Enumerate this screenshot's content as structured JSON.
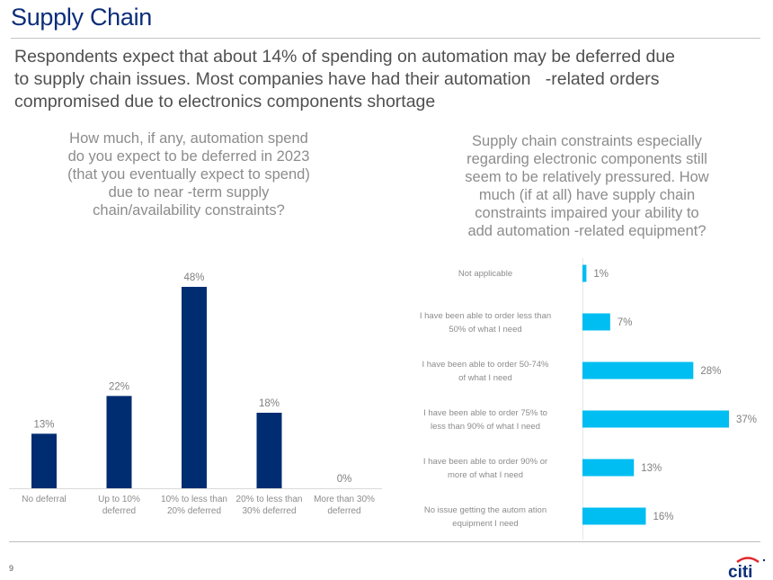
{
  "header": {
    "title": "Supply Chain",
    "subtitle_lines": [
      "Respondents expect that about 14% of spending on automation may be deferred due",
      "to supply chain issues. Most companies have had their automation   -related orders",
      "compromised due to electronics components shortage"
    ]
  },
  "colors": {
    "title": "#0b2e7a",
    "left_bars": "#002d72",
    "right_bars": "#00bdf2",
    "label_text": "#8c8c8c",
    "logo_arc": "#e0262c",
    "logo_text": "#0b2e7a"
  },
  "chart_data": [
    {
      "type": "bar",
      "orientation": "vertical",
      "title_lines": [
        "How much, if any, automation spend",
        "do you expect to be deferred in 2023",
        "(that you eventually expect to spend)",
        "due to near -term supply",
        "chain/availability constraints?"
      ],
      "categories": [
        [
          "No deferral"
        ],
        [
          "Up to 10%",
          "deferred"
        ],
        [
          "10% to less than",
          "20% deferred"
        ],
        [
          "20% to less than",
          "30% deferred"
        ],
        [
          "More than 30%",
          "deferred"
        ]
      ],
      "values": [
        13,
        22,
        48,
        18,
        0
      ],
      "data_labels": [
        "13%",
        "22%",
        "48%",
        "18%",
        "0%"
      ],
      "unit": "%",
      "ylim": [
        0,
        50
      ],
      "grid": false,
      "legend": "none"
    },
    {
      "type": "bar",
      "orientation": "horizontal",
      "title_lines": [
        "Supply chain constraints especially",
        "regarding electronic components still",
        "seem to be relatively pressured. How",
        "much (if at all) have supply chain",
        "constraints impaired your ability to",
        "add automation -related equipment?"
      ],
      "categories": [
        [
          "Not applicable"
        ],
        [
          "I have been able to order less than",
          "50% of what I need"
        ],
        [
          "I have been able to order 50-74%",
          "of what I need"
        ],
        [
          "I have been able to order 75% to",
          "less than 90% of what I need"
        ],
        [
          "I have been able to order 90% or",
          "more of what I need"
        ],
        [
          "No issue getting the autom ation",
          "equipment I need"
        ]
      ],
      "values": [
        1,
        7,
        28,
        37,
        13,
        16
      ],
      "data_labels": [
        "1%",
        "7%",
        "28%",
        "37%",
        "13%",
        "16%"
      ],
      "unit": "%",
      "xlim": [
        0,
        40
      ],
      "grid": false,
      "legend": "none"
    }
  ],
  "footer": {
    "page_number": "9",
    "logo_text": "citi"
  }
}
